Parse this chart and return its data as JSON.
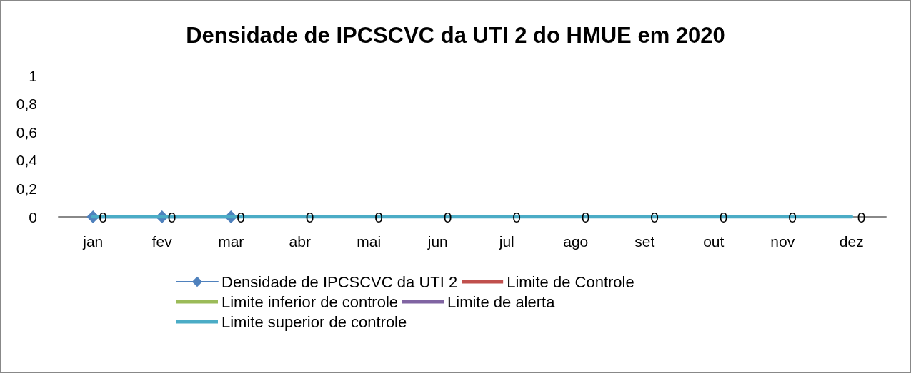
{
  "chart_data": {
    "type": "line",
    "title": "Densidade de IPCSCVC da UTI 2 do HMUE em 2020",
    "categories": [
      "jan",
      "fev",
      "mar",
      "abr",
      "mai",
      "jun",
      "jul",
      "ago",
      "set",
      "out",
      "nov",
      "dez"
    ],
    "series": [
      {
        "name": "Densidade de IPCSCVC da UTI 2",
        "color": "#4f81bd",
        "marker": "diamond",
        "values": [
          0,
          0,
          0,
          null,
          null,
          null,
          null,
          null,
          null,
          null,
          null,
          null
        ]
      },
      {
        "name": "Limite de Controle",
        "color": "#c0504d",
        "marker": "none",
        "values": [
          null,
          null,
          null,
          null,
          null,
          null,
          null,
          null,
          null,
          null,
          null,
          null
        ]
      },
      {
        "name": "Limite inferior de controle",
        "color": "#9bbb59",
        "marker": "none",
        "values": [
          null,
          null,
          null,
          null,
          null,
          null,
          null,
          null,
          null,
          null,
          null,
          null
        ]
      },
      {
        "name": "Limite de alerta",
        "color": "#8064a2",
        "marker": "none",
        "values": [
          null,
          null,
          null,
          null,
          null,
          null,
          null,
          null,
          null,
          null,
          null,
          null
        ]
      },
      {
        "name": "Limite superior de controle",
        "color": "#4bacc6",
        "marker": "none",
        "values": [
          0,
          0,
          0,
          0,
          0,
          0,
          0,
          0,
          0,
          0,
          0,
          0
        ],
        "value_labels": [
          "0",
          "0",
          "0",
          "0",
          "0",
          "0",
          "0",
          "0",
          "0",
          "0",
          "0",
          "0"
        ]
      }
    ],
    "ylim": [
      0,
      1
    ],
    "yticks": [
      0,
      {
        "value": 0.2,
        "label": "0,2"
      },
      {
        "value": 0.4,
        "label": "0,4"
      },
      {
        "value": 0.6,
        "label": "0,6"
      },
      {
        "value": 0.8,
        "label": "0,8"
      },
      1
    ],
    "grid": false,
    "legend": "bottom"
  }
}
